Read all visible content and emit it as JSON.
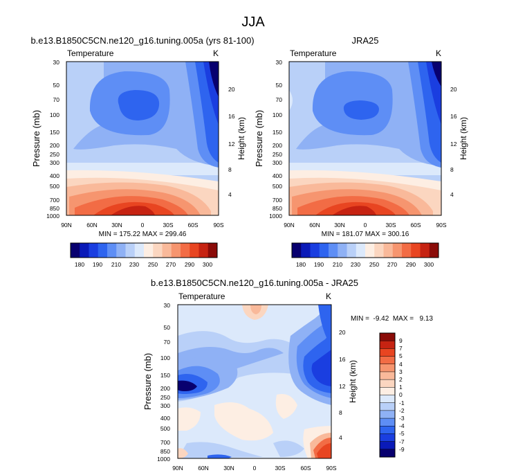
{
  "figure_title": "JJA",
  "colorbar_main": {
    "colors": [
      "#08006f",
      "#0a1ab8",
      "#1a3ee0",
      "#2e64ef",
      "#5e8ef5",
      "#8fb1f5",
      "#b9d0f8",
      "#dce9fb",
      "#fdeee3",
      "#fbd6c0",
      "#f9b99a",
      "#f6956f",
      "#f26c45",
      "#e84521",
      "#c62312",
      "#8a0b08"
    ],
    "labels": [
      "180",
      "190",
      "210",
      "230",
      "250",
      "270",
      "290",
      "300"
    ]
  },
  "colorbar_diff": {
    "colors": [
      "#08006f",
      "#0a1ab8",
      "#1a3ee0",
      "#2e64ef",
      "#5e8ef5",
      "#8fb1f5",
      "#b9d0f8",
      "#dce9fb",
      "#fdeee3",
      "#fbd6c0",
      "#f9b99a",
      "#f6956f",
      "#f26c45",
      "#e84521",
      "#c62312",
      "#8a0b08"
    ],
    "labels": [
      "9",
      "7",
      "5",
      "4",
      "3",
      "2",
      "1",
      "0",
      "-1",
      "-2",
      "-3",
      "-4",
      "-5",
      "-7",
      "-9"
    ]
  },
  "chart_data": [
    {
      "type": "contour",
      "title": "b.e13.B1850C5CN.ne120_g16.tuning.005a (yrs 81-100)",
      "left_label": "Temperature",
      "right_label": "K",
      "ylabel": "Pressure (mb)",
      "ylabel_right": "Height (km)",
      "x_ticks": [
        "90N",
        "60N",
        "30N",
        "0",
        "30S",
        "60S",
        "90S"
      ],
      "y_ticks": [
        "30",
        "50",
        "70",
        "100",
        "150",
        "200",
        "250",
        "300",
        "400",
        "500",
        "700",
        "850",
        "1000"
      ],
      "height_ticks": [
        "20",
        "16",
        "12",
        "8",
        "4"
      ],
      "stats": "MIN = 175.22  MAX = 299.46",
      "min": 175.22,
      "max": 299.46
    },
    {
      "type": "contour",
      "title": "JRA25",
      "left_label": "Temperature",
      "right_label": "K",
      "ylabel": "Pressure (mb)",
      "ylabel_right": "Height (km)",
      "x_ticks": [
        "90N",
        "60N",
        "30N",
        "0",
        "30S",
        "60S",
        "90S"
      ],
      "y_ticks": [
        "30",
        "50",
        "70",
        "100",
        "150",
        "200",
        "250",
        "300",
        "400",
        "500",
        "700",
        "850",
        "1000"
      ],
      "height_ticks": [
        "20",
        "16",
        "12",
        "8",
        "4"
      ],
      "stats": "MIN = 181.07  MAX = 300.16",
      "min": 181.07,
      "max": 300.16
    },
    {
      "type": "contour",
      "title": "b.e13.B1850C5CN.ne120_g16.tuning.005a - JRA25",
      "left_label": "Temperature",
      "right_label": "K",
      "ylabel": "Pressure (mb)",
      "ylabel_right": "Height (km)",
      "x_ticks": [
        "90N",
        "60N",
        "30N",
        "0",
        "30S",
        "60S",
        "90S"
      ],
      "y_ticks": [
        "30",
        "50",
        "70",
        "100",
        "150",
        "200",
        "250",
        "300",
        "400",
        "500",
        "700",
        "850",
        "1000"
      ],
      "height_ticks": [
        "20",
        "16",
        "12",
        "8",
        "4"
      ],
      "stats": "MIN =  -9.42  MAX =   9.13",
      "min": -9.42,
      "max": 9.13
    }
  ]
}
